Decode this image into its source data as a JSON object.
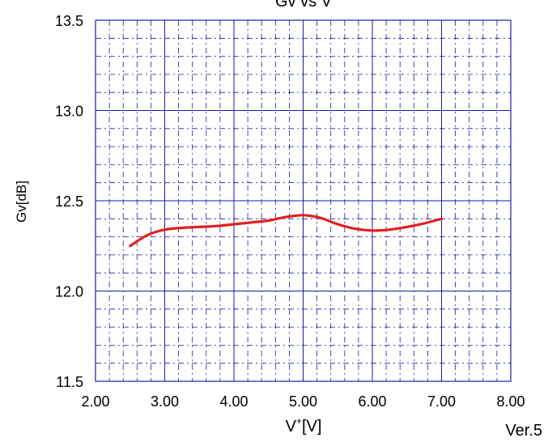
{
  "chart_data": {
    "type": "line",
    "title": "Gv vs V",
    "xlabel": "V",
    "xlabel_sup": "+",
    "xlabel_unit": "[V]",
    "ylabel": "Gv[dB]",
    "xlim": [
      2.0,
      8.0
    ],
    "ylim": [
      11.5,
      13.5
    ],
    "xticks": [
      "2.00",
      "3.00",
      "4.00",
      "5.00",
      "6.00",
      "7.00",
      "8.00"
    ],
    "yticks": [
      "11.5",
      "12.0",
      "12.5",
      "13.0",
      "13.5"
    ],
    "grid": true,
    "series": [
      {
        "color": "#e0201e",
        "x": [
          2.5,
          2.75,
          3.0,
          3.25,
          3.5,
          3.75,
          4.0,
          4.25,
          4.5,
          4.75,
          5.0,
          5.25,
          5.5,
          5.75,
          6.0,
          6.25,
          6.5,
          6.75,
          7.0
        ],
        "y": [
          12.25,
          12.31,
          12.34,
          12.35,
          12.355,
          12.36,
          12.37,
          12.38,
          12.39,
          12.41,
          12.42,
          12.405,
          12.37,
          12.345,
          12.335,
          12.34,
          12.355,
          12.375,
          12.4
        ]
      }
    ]
  },
  "footer": {
    "version": "Ver.5"
  },
  "colors": {
    "grid": "#1a1aa6",
    "line": "#e0201e"
  }
}
